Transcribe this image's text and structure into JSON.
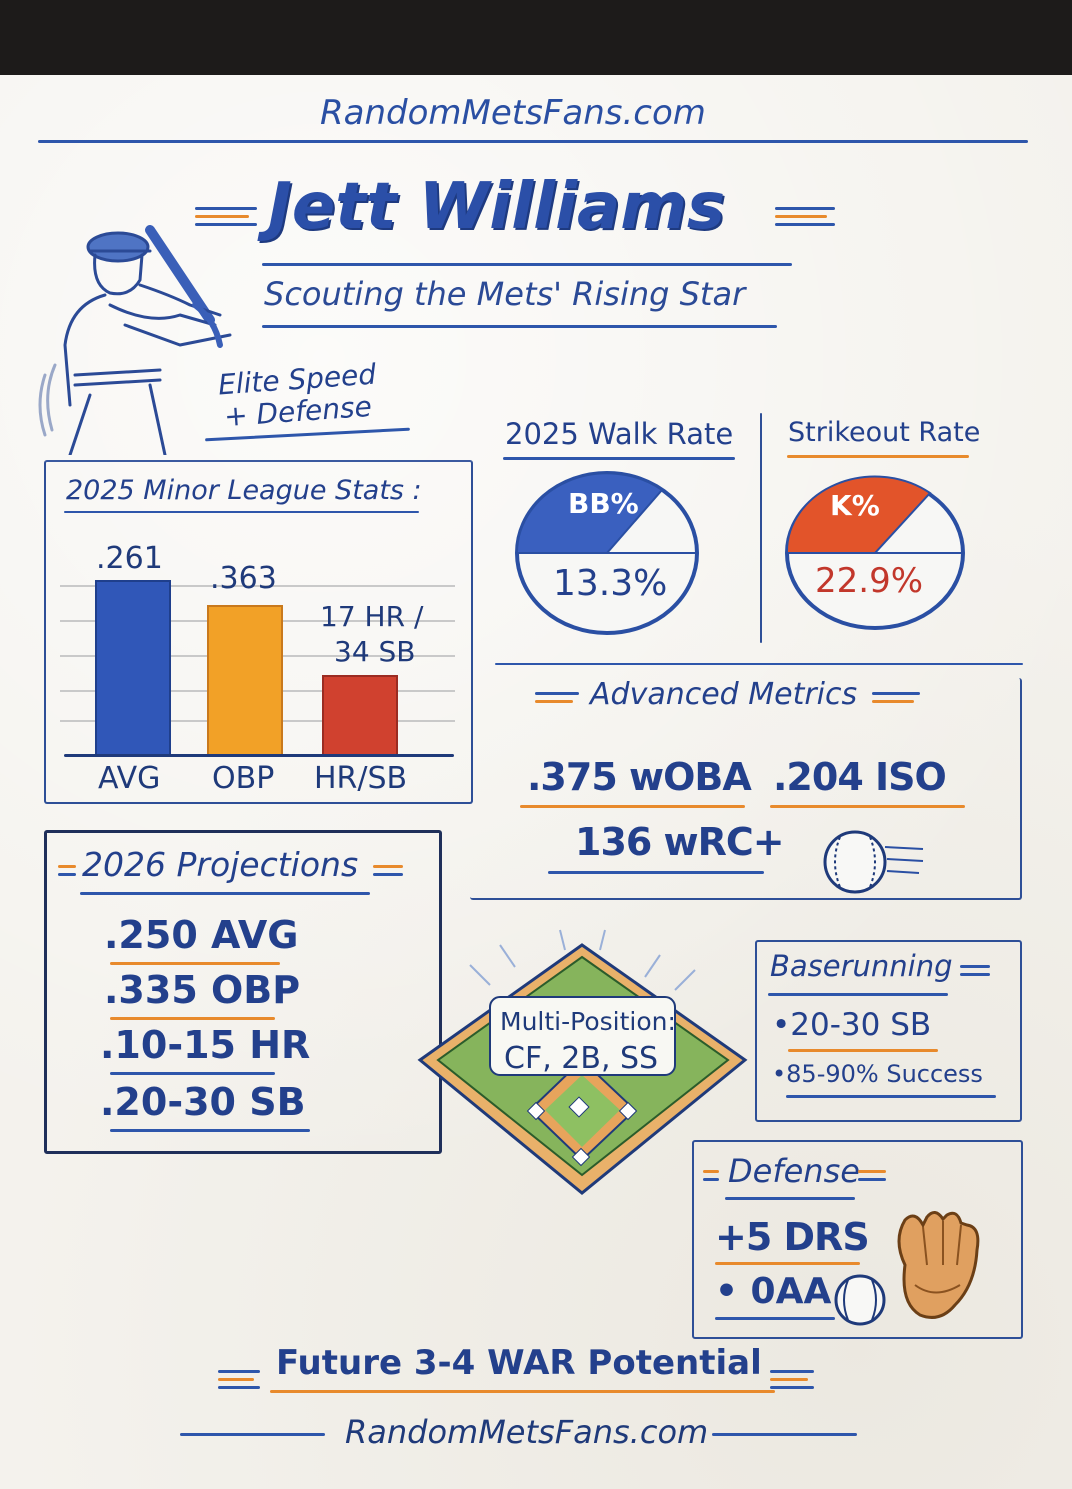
{
  "site": {
    "top": "RandomMetsFans.com",
    "bottom": "RandomMetsFans.com"
  },
  "header": {
    "title": "Jett Williams",
    "subtitle": "Scouting the Mets' Rising Star",
    "tagline_1": "Elite Speed",
    "tagline_2": "+ Defense"
  },
  "minor_league": {
    "heading": "2025 Minor League Stats :",
    "bars": [
      {
        "label": "AVG",
        "value_text": ".261",
        "color": "#3057b8"
      },
      {
        "label": "OBP",
        "value_text": ".363",
        "color": "#f2a127"
      },
      {
        "label": "HR/SB",
        "value_text_1": "17 HR /",
        "value_text_2": "34 SB",
        "color": "#d0412f"
      }
    ]
  },
  "walk_rate": {
    "heading": "2025 Walk Rate",
    "badge": "BB%",
    "value": "13.3%",
    "color": "#2e56b8"
  },
  "strikeout_rate": {
    "heading": "Strikeout Rate",
    "badge": "K%",
    "value": "22.9%",
    "color": "#e2542a"
  },
  "advanced": {
    "heading": "Advanced Metrics",
    "woba": ".375 wOBA",
    "iso": ".204 ISO",
    "wrc": "136 wRC+"
  },
  "projections": {
    "heading": "2026 Projections",
    "items": [
      ".250 AVG",
      ".335 OBP",
      ".10-15 HR",
      ".20-30 SB"
    ]
  },
  "position": {
    "line_1": "Multi-Position:",
    "line_2": "CF, 2B, SS"
  },
  "baserunning": {
    "heading": "Baserunning",
    "items": [
      "•20-30 SB",
      "•85-90% Success"
    ]
  },
  "defense": {
    "heading": "Defense",
    "drs": "+5 DRS",
    "oaa": "• 0AA"
  },
  "footer": {
    "war": "Future 3-4 WAR Potential"
  },
  "colors": {
    "ink_blue": "#2a4fa3",
    "accent_orange": "#e07a1f",
    "accent_red": "#c2372b",
    "paper": "#f4f2ed"
  }
}
